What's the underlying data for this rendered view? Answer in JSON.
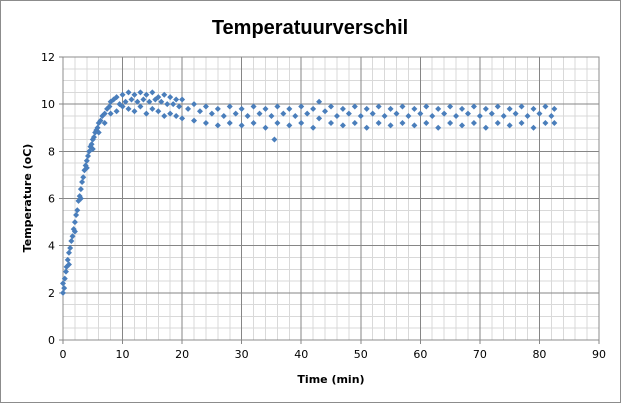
{
  "chart_data": {
    "type": "scatter",
    "title": "Temperatuurverschil",
    "xlabel": "Time (min)",
    "ylabel": "Temperature (oC)",
    "xlim": [
      0,
      90
    ],
    "ylim": [
      0,
      12
    ],
    "x_ticks": [
      "0",
      "10",
      "20",
      "30",
      "40",
      "50",
      "60",
      "70",
      "80",
      "90"
    ],
    "y_ticks": [
      "0",
      "2",
      "4",
      "6",
      "8",
      "10",
      "12"
    ],
    "x_major_step": 10,
    "x_minor_step": 2,
    "y_major_step": 2,
    "y_minor_step": 0.5,
    "grid": true,
    "legend": "none",
    "marker": "diamond",
    "series_color": "#4a7ebb",
    "series": [
      {
        "values": [
          [
            0.0,
            2.0
          ],
          [
            0.0,
            2.4
          ],
          [
            0.2,
            2.2
          ],
          [
            0.3,
            2.6
          ],
          [
            0.5,
            2.9
          ],
          [
            0.6,
            3.1
          ],
          [
            0.8,
            3.4
          ],
          [
            1.0,
            3.2
          ],
          [
            1.0,
            3.7
          ],
          [
            1.2,
            3.9
          ],
          [
            1.4,
            4.2
          ],
          [
            1.6,
            4.4
          ],
          [
            1.8,
            4.7
          ],
          [
            2.0,
            5.0
          ],
          [
            2.0,
            4.6
          ],
          [
            2.2,
            5.3
          ],
          [
            2.4,
            5.5
          ],
          [
            2.6,
            5.9
          ],
          [
            2.8,
            6.1
          ],
          [
            3.0,
            6.4
          ],
          [
            3.0,
            6.0
          ],
          [
            3.2,
            6.7
          ],
          [
            3.4,
            6.9
          ],
          [
            3.6,
            7.2
          ],
          [
            3.8,
            7.4
          ],
          [
            4.0,
            7.6
          ],
          [
            4.0,
            7.3
          ],
          [
            4.2,
            7.8
          ],
          [
            4.4,
            8.0
          ],
          [
            4.6,
            8.2
          ],
          [
            4.8,
            8.3
          ],
          [
            5.0,
            8.5
          ],
          [
            5.0,
            8.1
          ],
          [
            5.2,
            8.6
          ],
          [
            5.4,
            8.8
          ],
          [
            5.6,
            8.9
          ],
          [
            5.8,
            9.0
          ],
          [
            6.0,
            9.2
          ],
          [
            6.0,
            8.8
          ],
          [
            6.3,
            9.3
          ],
          [
            6.6,
            9.5
          ],
          [
            7.0,
            9.6
          ],
          [
            7.0,
            9.2
          ],
          [
            7.4,
            9.8
          ],
          [
            7.8,
            9.9
          ],
          [
            8.0,
            10.1
          ],
          [
            8.0,
            9.6
          ],
          [
            8.5,
            10.2
          ],
          [
            9.0,
            10.3
          ],
          [
            9.0,
            9.7
          ],
          [
            9.5,
            10.0
          ],
          [
            10.0,
            10.4
          ],
          [
            10.0,
            9.9
          ],
          [
            10.5,
            10.1
          ],
          [
            11.0,
            10.5
          ],
          [
            11.0,
            9.8
          ],
          [
            11.5,
            10.2
          ],
          [
            12.0,
            10.4
          ],
          [
            12.0,
            9.7
          ],
          [
            12.5,
            10.1
          ],
          [
            13.0,
            10.5
          ],
          [
            13.0,
            9.9
          ],
          [
            13.5,
            10.2
          ],
          [
            14.0,
            10.4
          ],
          [
            14.0,
            9.6
          ],
          [
            14.5,
            10.1
          ],
          [
            15.0,
            10.5
          ],
          [
            15.0,
            9.8
          ],
          [
            15.5,
            10.2
          ],
          [
            16.0,
            10.3
          ],
          [
            16.0,
            9.7
          ],
          [
            16.5,
            10.1
          ],
          [
            17.0,
            10.4
          ],
          [
            17.0,
            9.5
          ],
          [
            17.5,
            10.0
          ],
          [
            18.0,
            10.3
          ],
          [
            18.0,
            9.6
          ],
          [
            18.5,
            10.0
          ],
          [
            19.0,
            10.2
          ],
          [
            19.0,
            9.5
          ],
          [
            19.5,
            9.9
          ],
          [
            20.0,
            10.2
          ],
          [
            20.0,
            9.4
          ],
          [
            21.0,
            9.8
          ],
          [
            22.0,
            10.0
          ],
          [
            22.0,
            9.3
          ],
          [
            23.0,
            9.7
          ],
          [
            24.0,
            9.9
          ],
          [
            24.0,
            9.2
          ],
          [
            25.0,
            9.6
          ],
          [
            26.0,
            9.8
          ],
          [
            26.0,
            9.1
          ],
          [
            27.0,
            9.5
          ],
          [
            28.0,
            9.9
          ],
          [
            28.0,
            9.2
          ],
          [
            29.0,
            9.6
          ],
          [
            30.0,
            9.8
          ],
          [
            30.0,
            9.1
          ],
          [
            31.0,
            9.5
          ],
          [
            32.0,
            9.9
          ],
          [
            32.0,
            9.2
          ],
          [
            33.0,
            9.6
          ],
          [
            34.0,
            9.8
          ],
          [
            34.0,
            9.0
          ],
          [
            35.0,
            9.5
          ],
          [
            35.5,
            8.5
          ],
          [
            36.0,
            9.9
          ],
          [
            36.0,
            9.2
          ],
          [
            37.0,
            9.6
          ],
          [
            38.0,
            9.8
          ],
          [
            38.0,
            9.1
          ],
          [
            39.0,
            9.5
          ],
          [
            40.0,
            9.9
          ],
          [
            40.0,
            9.2
          ],
          [
            41.0,
            9.6
          ],
          [
            42.0,
            9.8
          ],
          [
            42.0,
            9.0
          ],
          [
            43.0,
            10.1
          ],
          [
            43.0,
            9.4
          ],
          [
            44.0,
            9.7
          ],
          [
            45.0,
            9.9
          ],
          [
            45.0,
            9.2
          ],
          [
            46.0,
            9.5
          ],
          [
            47.0,
            9.8
          ],
          [
            47.0,
            9.1
          ],
          [
            48.0,
            9.6
          ],
          [
            49.0,
            9.9
          ],
          [
            49.0,
            9.2
          ],
          [
            50.0,
            9.5
          ],
          [
            51.0,
            9.8
          ],
          [
            51.0,
            9.0
          ],
          [
            52.0,
            9.6
          ],
          [
            53.0,
            9.9
          ],
          [
            53.0,
            9.2
          ],
          [
            54.0,
            9.5
          ],
          [
            55.0,
            9.8
          ],
          [
            55.0,
            9.1
          ],
          [
            56.0,
            9.6
          ],
          [
            57.0,
            9.9
          ],
          [
            57.0,
            9.2
          ],
          [
            58.0,
            9.5
          ],
          [
            59.0,
            9.8
          ],
          [
            59.0,
            9.1
          ],
          [
            60.0,
            9.6
          ],
          [
            61.0,
            9.9
          ],
          [
            61.0,
            9.2
          ],
          [
            62.0,
            9.5
          ],
          [
            63.0,
            9.8
          ],
          [
            63.0,
            9.0
          ],
          [
            64.0,
            9.6
          ],
          [
            65.0,
            9.9
          ],
          [
            65.0,
            9.2
          ],
          [
            66.0,
            9.5
          ],
          [
            67.0,
            9.8
          ],
          [
            67.0,
            9.1
          ],
          [
            68.0,
            9.6
          ],
          [
            69.0,
            9.9
          ],
          [
            69.0,
            9.2
          ],
          [
            70.0,
            9.5
          ],
          [
            71.0,
            9.8
          ],
          [
            71.0,
            9.0
          ],
          [
            72.0,
            9.6
          ],
          [
            73.0,
            9.9
          ],
          [
            73.0,
            9.2
          ],
          [
            74.0,
            9.5
          ],
          [
            75.0,
            9.8
          ],
          [
            75.0,
            9.1
          ],
          [
            76.0,
            9.6
          ],
          [
            77.0,
            9.9
          ],
          [
            77.0,
            9.2
          ],
          [
            78.0,
            9.5
          ],
          [
            79.0,
            9.8
          ],
          [
            79.0,
            9.0
          ],
          [
            80.0,
            9.6
          ],
          [
            81.0,
            9.9
          ],
          [
            81.0,
            9.2
          ],
          [
            82.0,
            9.5
          ],
          [
            82.5,
            9.8
          ],
          [
            82.5,
            9.2
          ]
        ]
      }
    ]
  }
}
